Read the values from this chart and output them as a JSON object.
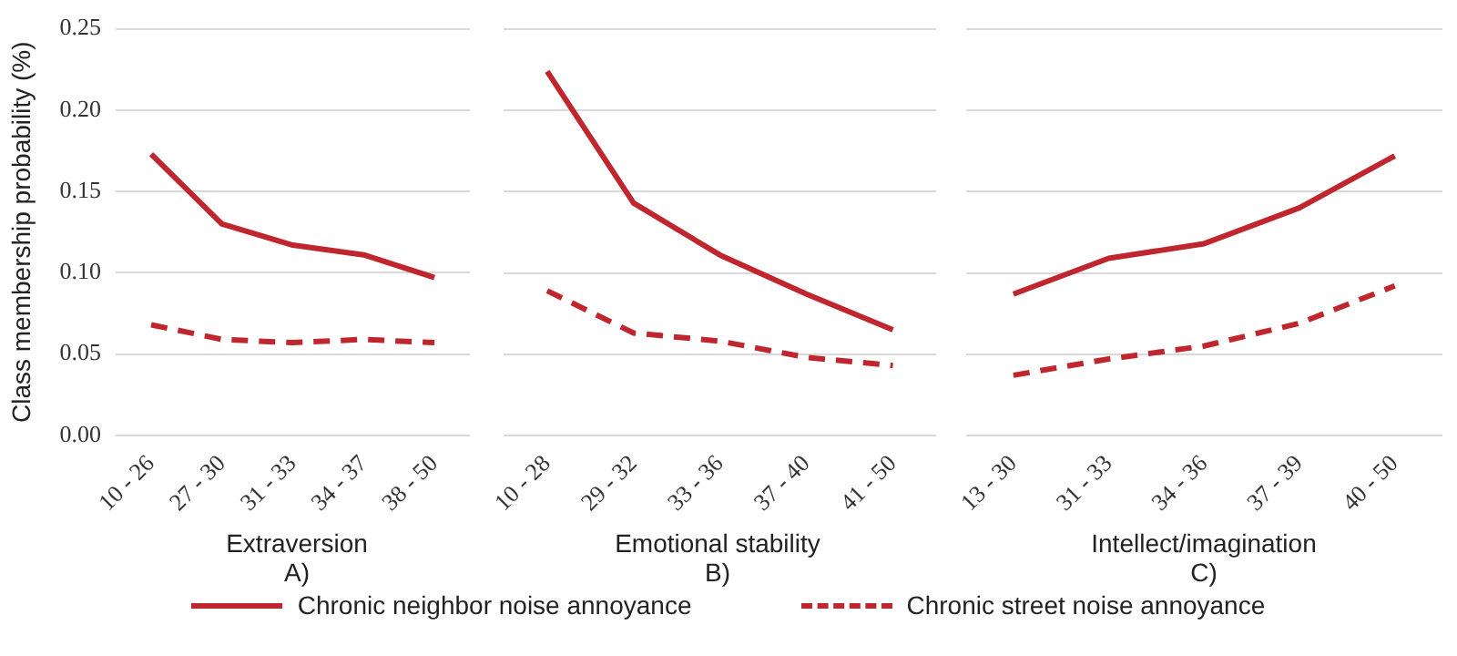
{
  "chart_data": [
    {
      "type": "line",
      "ylabel": "Class membership probability (%)",
      "xlabel": "Extraversion",
      "annotations": [
        "A)"
      ],
      "categories": [
        "10 - 26",
        "27 - 30",
        "31 - 33",
        "34 - 37",
        "38 - 50"
      ],
      "ylim": [
        0,
        0.25
      ],
      "yticks": [
        {
          "value": 0,
          "label": "0.00"
        },
        {
          "value": 0.05,
          "label": "0.05"
        },
        {
          "value": 0.1,
          "label": "0.10"
        },
        {
          "value": 0.15,
          "label": "0.15"
        },
        {
          "value": 0.2,
          "label": "0.20"
        },
        {
          "value": 0.25,
          "label": "0.25"
        }
      ],
      "grid": "y",
      "legend": "bottom",
      "marker": "none",
      "series": [
        {
          "name": "Chronic neighbor noise annoyance",
          "color": "#c0262d",
          "line_style": "solid",
          "values": [
            0.173,
            0.13,
            0.117,
            0.111,
            0.097
          ]
        },
        {
          "name": "Chronic street noise annoyance",
          "color": "#c0262d",
          "line_style": "dashed",
          "values": [
            0.068,
            0.059,
            0.057,
            0.059,
            0.057
          ]
        }
      ]
    },
    {
      "type": "line",
      "xlabel": "Emotional stability",
      "annotations": [
        "B)"
      ],
      "categories": [
        "10 - 28",
        "29 - 32",
        "33 - 36",
        "37 - 40",
        "41 - 50"
      ],
      "ylim": [
        0,
        0.25
      ],
      "yticks": [
        0,
        0.05,
        0.1,
        0.15,
        0.2,
        0.25
      ],
      "grid": "y",
      "tick_labels": "x",
      "marker": "none",
      "series": [
        {
          "color": "#c0262d",
          "line_style": "solid",
          "values": [
            0.224,
            0.143,
            0.111,
            0.087,
            0.065
          ]
        },
        {
          "color": "#c0262d",
          "line_style": "dashed",
          "values": [
            0.089,
            0.063,
            0.058,
            0.048,
            0.043
          ]
        }
      ]
    },
    {
      "type": "line",
      "xlabel": "Intellect/imagination",
      "annotations": [
        "C)"
      ],
      "categories": [
        "13 - 30",
        "31 - 33",
        "34 - 36",
        "37 - 39",
        "40 - 50"
      ],
      "ylim": [
        0,
        0.25
      ],
      "yticks": [
        0,
        0.05,
        0.1,
        0.15,
        0.2,
        0.25
      ],
      "grid": "y",
      "tick_labels": "x",
      "marker": "none",
      "series": [
        {
          "color": "#c0262d",
          "line_style": "solid",
          "values": [
            0.087,
            0.109,
            0.118,
            0.14,
            0.172
          ]
        },
        {
          "color": "#c0262d",
          "line_style": "dashed",
          "values": [
            0.037,
            0.047,
            0.055,
            0.069,
            0.092
          ]
        }
      ]
    }
  ]
}
